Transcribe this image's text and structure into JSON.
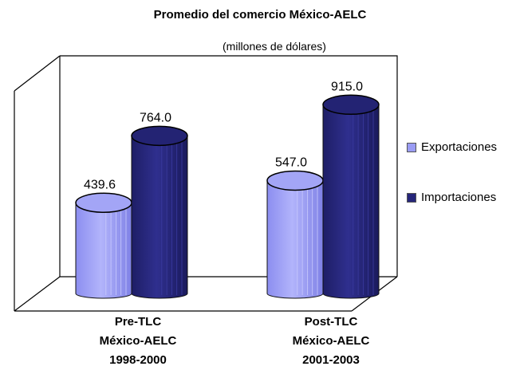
{
  "chart_data": {
    "type": "bar",
    "title": "Promedio del comercio México-AELC",
    "subtitle": "(millones de dólares)",
    "categories": [
      [
        "Pre-TLC",
        "México-AELC",
        "1998-2000"
      ],
      [
        "Post-TLC",
        "México-AELC",
        "2001-2003"
      ]
    ],
    "series": [
      {
        "name": "Exportaciones",
        "values": [
          439.6,
          547.0
        ],
        "value_labels": [
          "439.6",
          "547.0"
        ],
        "color": "#9a9cf4"
      },
      {
        "name": "Importaciones",
        "values": [
          764.0,
          915.0
        ],
        "value_labels": [
          "764.0",
          "915.0"
        ],
        "color": "#26267a"
      }
    ],
    "ylim": [
      0,
      1000
    ],
    "grid": false,
    "legend_position": "right"
  }
}
